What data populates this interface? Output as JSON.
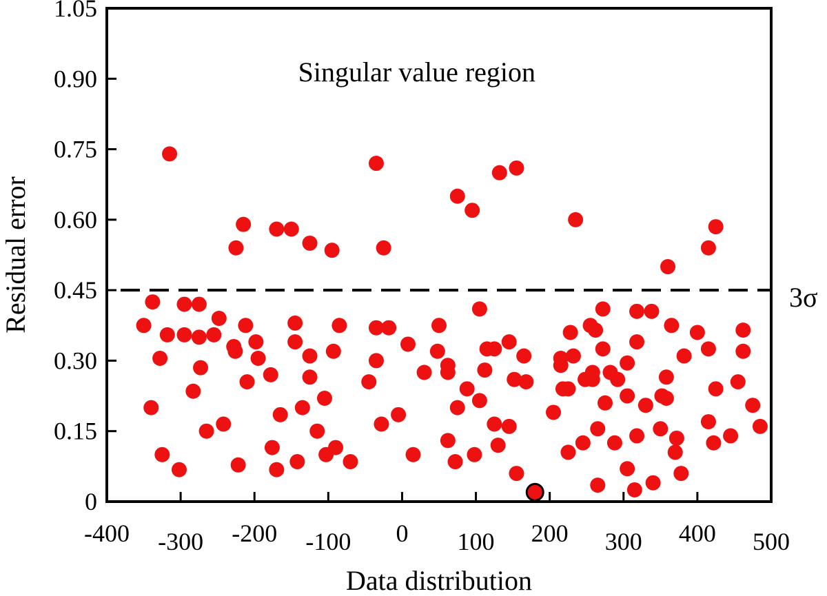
{
  "chart_data": {
    "type": "scatter",
    "xlabel": "Data distribution",
    "ylabel": "Residual error",
    "xlim": [
      -400,
      500
    ],
    "ylim": [
      0,
      1.05
    ],
    "xticks": [
      -400,
      -300,
      -200,
      -100,
      0,
      100,
      200,
      300,
      400,
      500
    ],
    "xtick_labels": [
      "-400",
      "-300",
      "-200",
      "-100",
      "0",
      "100",
      "200",
      "300",
      "400",
      "500"
    ],
    "yticks": [
      0,
      0.15,
      0.3,
      0.45,
      0.6,
      0.75,
      0.9,
      1.05
    ],
    "ytick_labels": [
      "0",
      "0.15",
      "0.30",
      "0.45",
      "0.60",
      "0.75",
      "0.90",
      "1.05"
    ],
    "grid": false,
    "threshold": {
      "value": 0.45,
      "label": "3σ",
      "style": "dashed",
      "color": "#000000"
    },
    "annotations": [
      {
        "text": "Singular value region",
        "x": 20,
        "y": 0.915
      }
    ],
    "colors": {
      "points": "#ee1111",
      "highlight_stroke": "#000000"
    },
    "highlighted_point": {
      "x": 180,
      "y": 0.02
    },
    "points": [
      [
        -315,
        0.74
      ],
      [
        -35,
        0.72
      ],
      [
        132,
        0.7
      ],
      [
        155,
        0.71
      ],
      [
        75,
        0.65
      ],
      [
        95,
        0.62
      ],
      [
        -215,
        0.59
      ],
      [
        -170,
        0.58
      ],
      [
        -150,
        0.58
      ],
      [
        -225,
        0.54
      ],
      [
        -125,
        0.55
      ],
      [
        -95,
        0.535
      ],
      [
        -25,
        0.54
      ],
      [
        235,
        0.6
      ],
      [
        425,
        0.585
      ],
      [
        415,
        0.54
      ],
      [
        360,
        0.5
      ],
      [
        -350,
        0.375
      ],
      [
        -338,
        0.425
      ],
      [
        -328,
        0.305
      ],
      [
        -318,
        0.355
      ],
      [
        -340,
        0.2
      ],
      [
        -325,
        0.1
      ],
      [
        -302,
        0.068
      ],
      [
        -295,
        0.42
      ],
      [
        -295,
        0.355
      ],
      [
        -283,
        0.235
      ],
      [
        -275,
        0.42
      ],
      [
        -275,
        0.35
      ],
      [
        -273,
        0.285
      ],
      [
        -265,
        0.15
      ],
      [
        -255,
        0.355
      ],
      [
        -248,
        0.39
      ],
      [
        -242,
        0.165
      ],
      [
        -228,
        0.33
      ],
      [
        -226,
        0.32
      ],
      [
        -222,
        0.078
      ],
      [
        -212,
        0.375
      ],
      [
        -210,
        0.255
      ],
      [
        -198,
        0.34
      ],
      [
        -195,
        0.305
      ],
      [
        -178,
        0.27
      ],
      [
        -176,
        0.115
      ],
      [
        -170,
        0.068
      ],
      [
        -165,
        0.185
      ],
      [
        -145,
        0.38
      ],
      [
        -145,
        0.34
      ],
      [
        -142,
        0.085
      ],
      [
        -135,
        0.2
      ],
      [
        -125,
        0.31
      ],
      [
        -125,
        0.265
      ],
      [
        -115,
        0.15
      ],
      [
        -105,
        0.22
      ],
      [
        -103,
        0.1
      ],
      [
        -93,
        0.32
      ],
      [
        -90,
        0.115
      ],
      [
        -85,
        0.375
      ],
      [
        -70,
        0.085
      ],
      [
        -45,
        0.255
      ],
      [
        -35,
        0.37
      ],
      [
        -35,
        0.3
      ],
      [
        -28,
        0.165
      ],
      [
        -18,
        0.37
      ],
      [
        -5,
        0.185
      ],
      [
        8,
        0.335
      ],
      [
        15,
        0.1
      ],
      [
        30,
        0.275
      ],
      [
        48,
        0.32
      ],
      [
        50,
        0.375
      ],
      [
        62,
        0.29
      ],
      [
        62,
        0.275
      ],
      [
        62,
        0.13
      ],
      [
        72,
        0.085
      ],
      [
        75,
        0.2
      ],
      [
        88,
        0.24
      ],
      [
        98,
        0.1
      ],
      [
        105,
        0.41
      ],
      [
        105,
        0.215
      ],
      [
        112,
        0.28
      ],
      [
        115,
        0.325
      ],
      [
        125,
        0.325
      ],
      [
        125,
        0.165
      ],
      [
        130,
        0.12
      ],
      [
        145,
        0.34
      ],
      [
        145,
        0.16
      ],
      [
        152,
        0.26
      ],
      [
        155,
        0.06
      ],
      [
        165,
        0.31
      ],
      [
        168,
        0.255
      ],
      [
        205,
        0.19
      ],
      [
        215,
        0.305
      ],
      [
        215,
        0.29
      ],
      [
        218,
        0.24
      ],
      [
        225,
        0.24
      ],
      [
        225,
        0.105
      ],
      [
        228,
        0.36
      ],
      [
        232,
        0.31
      ],
      [
        245,
        0.125
      ],
      [
        248,
        0.26
      ],
      [
        255,
        0.375
      ],
      [
        258,
        0.26
      ],
      [
        258,
        0.275
      ],
      [
        262,
        0.365
      ],
      [
        265,
        0.035
      ],
      [
        265,
        0.155
      ],
      [
        272,
        0.41
      ],
      [
        272,
        0.325
      ],
      [
        275,
        0.21
      ],
      [
        282,
        0.275
      ],
      [
        288,
        0.125
      ],
      [
        292,
        0.26
      ],
      [
        305,
        0.295
      ],
      [
        305,
        0.225
      ],
      [
        305,
        0.07
      ],
      [
        315,
        0.025
      ],
      [
        318,
        0.405
      ],
      [
        318,
        0.34
      ],
      [
        318,
        0.14
      ],
      [
        330,
        0.205
      ],
      [
        338,
        0.405
      ],
      [
        340,
        0.04
      ],
      [
        350,
        0.155
      ],
      [
        352,
        0.225
      ],
      [
        358,
        0.22
      ],
      [
        358,
        0.265
      ],
      [
        365,
        0.375
      ],
      [
        370,
        0.105
      ],
      [
        372,
        0.135
      ],
      [
        378,
        0.06
      ],
      [
        382,
        0.31
      ],
      [
        400,
        0.36
      ],
      [
        415,
        0.325
      ],
      [
        415,
        0.17
      ],
      [
        422,
        0.125
      ],
      [
        425,
        0.24
      ],
      [
        445,
        0.14
      ],
      [
        455,
        0.255
      ],
      [
        462,
        0.365
      ],
      [
        462,
        0.32
      ],
      [
        475,
        0.205
      ],
      [
        485,
        0.16
      ]
    ]
  }
}
